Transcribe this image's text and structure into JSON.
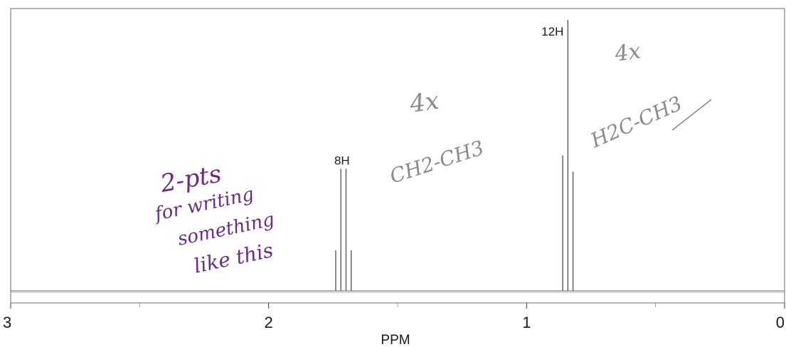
{
  "chart_data": {
    "type": "line",
    "title": "",
    "xlabel": "PPM",
    "ylabel": "",
    "x_reversed": true,
    "xlim": [
      3,
      0
    ],
    "xticks": [
      3,
      2,
      1,
      0
    ],
    "xtick_labels": [
      "3",
      "2",
      "1",
      "0"
    ],
    "minor_xticks": [
      2.5,
      1.5,
      0.5
    ],
    "grid": false,
    "peaks": [
      {
        "label": "8H",
        "lines": [
          {
            "ppm": 1.74,
            "intensity": 0.15
          },
          {
            "ppm": 1.72,
            "intensity": 0.45
          },
          {
            "ppm": 1.7,
            "intensity": 0.45
          },
          {
            "ppm": 1.68,
            "intensity": 0.15
          }
        ]
      },
      {
        "label": "12H",
        "lines": [
          {
            "ppm": 0.86,
            "intensity": 0.5
          },
          {
            "ppm": 0.84,
            "intensity": 1.0
          },
          {
            "ppm": 0.82,
            "intensity": 0.44
          }
        ]
      }
    ]
  },
  "annotations": {
    "grading_note": [
      "2-pts",
      "for writing",
      "something",
      "like this"
    ],
    "methylene_group": [
      "4x",
      "CH2-CH3"
    ],
    "methyl_group": [
      "4x",
      "H2C-CH3"
    ]
  },
  "colors": {
    "spectrum": "#5a5a5a",
    "axis": "#3a3a3a",
    "ink_purple": "#6a2a88",
    "ink_pencil": "#8a8a8a"
  }
}
